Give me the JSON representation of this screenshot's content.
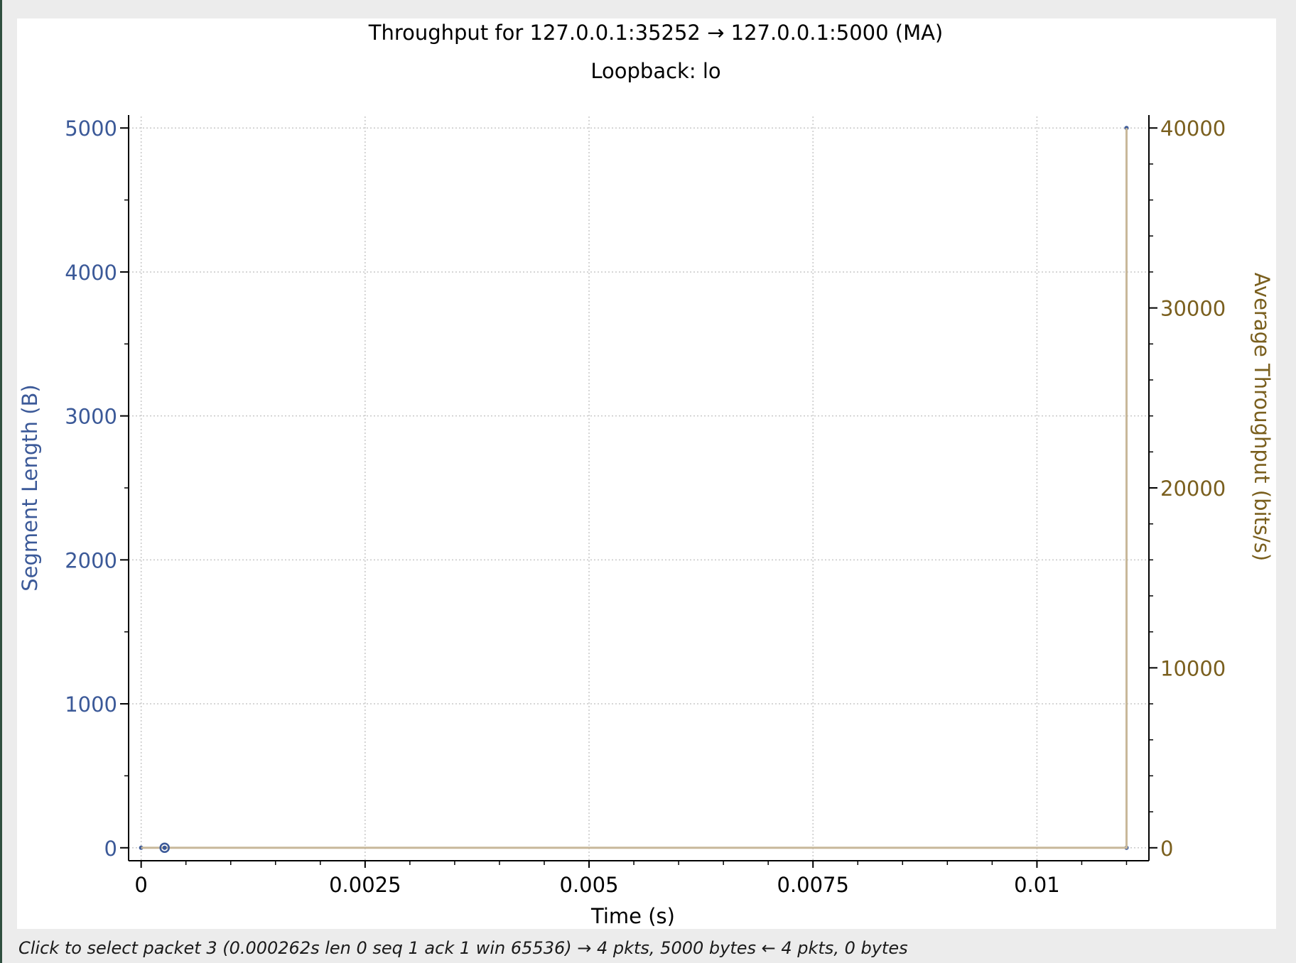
{
  "chart_data": {
    "type": "scatter",
    "title": "Throughput for 127.0.0.1:35252 → 127.0.0.1:5000 (MA)",
    "subtitle": "Loopback: lo",
    "xlabel": "Time (s)",
    "ylabel_left": "Segment Length (B)",
    "ylabel_right": "Average Throughput (bits/s)",
    "xlim": [
      -0.00014,
      0.01125
    ],
    "ylim_left": [
      -90,
      5090
    ],
    "ylim_right": [
      -720,
      40720
    ],
    "x_ticks": [
      0,
      0.0025,
      0.005,
      0.0075,
      0.01
    ],
    "x_tick_labels": [
      "0",
      "0.0025",
      "0.005",
      "0.0075",
      "0.01"
    ],
    "y_left_ticks": [
      0,
      1000,
      2000,
      3000,
      4000,
      5000
    ],
    "y_left_tick_labels": [
      "0",
      "1000",
      "2000",
      "3000",
      "4000",
      "5000"
    ],
    "y_right_ticks": [
      0,
      10000,
      20000,
      30000,
      40000
    ],
    "y_right_tick_labels": [
      "0",
      "10000",
      "20000",
      "30000",
      "40000"
    ],
    "grid": true,
    "series": [
      {
        "axis": "left",
        "color": "#3b5998",
        "style": "points",
        "points": [
          {
            "x": 0.0,
            "y": 0
          },
          {
            "x": 0.000262,
            "y": 0
          },
          {
            "x": 0.011,
            "y": 0
          },
          {
            "x": 0.011,
            "y": 5000
          }
        ]
      },
      {
        "axis": "right",
        "color": "#c8b89a",
        "style": "line",
        "points": [
          {
            "x": 0.0,
            "y": 0
          },
          {
            "x": 0.011,
            "y": 0
          },
          {
            "x": 0.011,
            "y": 40000
          }
        ]
      }
    ],
    "selected_point": {
      "x": 0.000262,
      "y": 0
    },
    "colors": {
      "left_axis": "#3b5998",
      "right_axis": "#7a5f1e",
      "grid": "#c8c8c8",
      "throughput_line": "#c8b89a"
    }
  },
  "status": {
    "text": "Click to select packet 3 (0.000262s len 0 seq 1 ack 1 win 65536) → 4 pkts, 5000 bytes ← 4 pkts, 0 bytes"
  }
}
